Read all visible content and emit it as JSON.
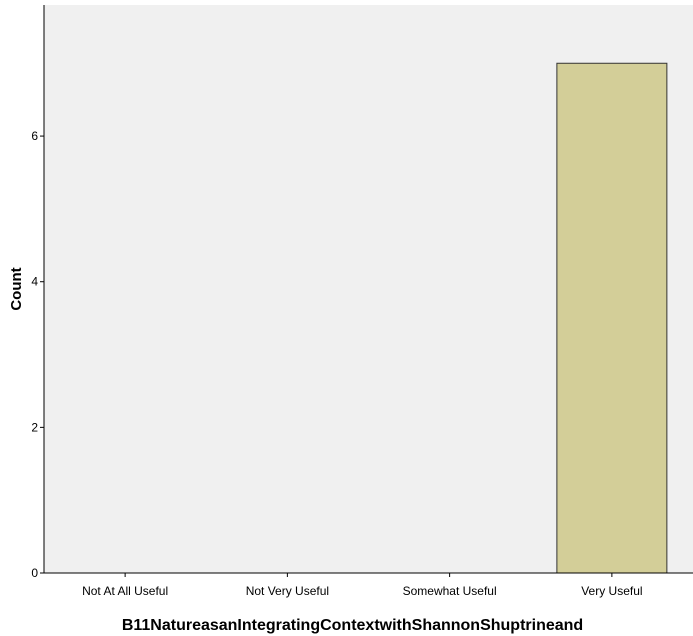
{
  "chart_data": {
    "type": "bar",
    "categories": [
      "Not At All Useful",
      "Not Very Useful",
      "Somewhat Useful",
      "Very Useful"
    ],
    "values": [
      0,
      0,
      0,
      7
    ],
    "xlabel": "B11NatureasanIntegratingContextwithShannonShuptrineand",
    "ylabel": "Count",
    "ylim": [
      0,
      7.8
    ],
    "yticks": [
      0,
      2,
      4,
      6
    ],
    "grid": false,
    "colors": {
      "plot_background": "#f0f0f0",
      "bar_fill": "#d3ce98",
      "bar_stroke": "#333333",
      "axis": "#000000"
    }
  }
}
